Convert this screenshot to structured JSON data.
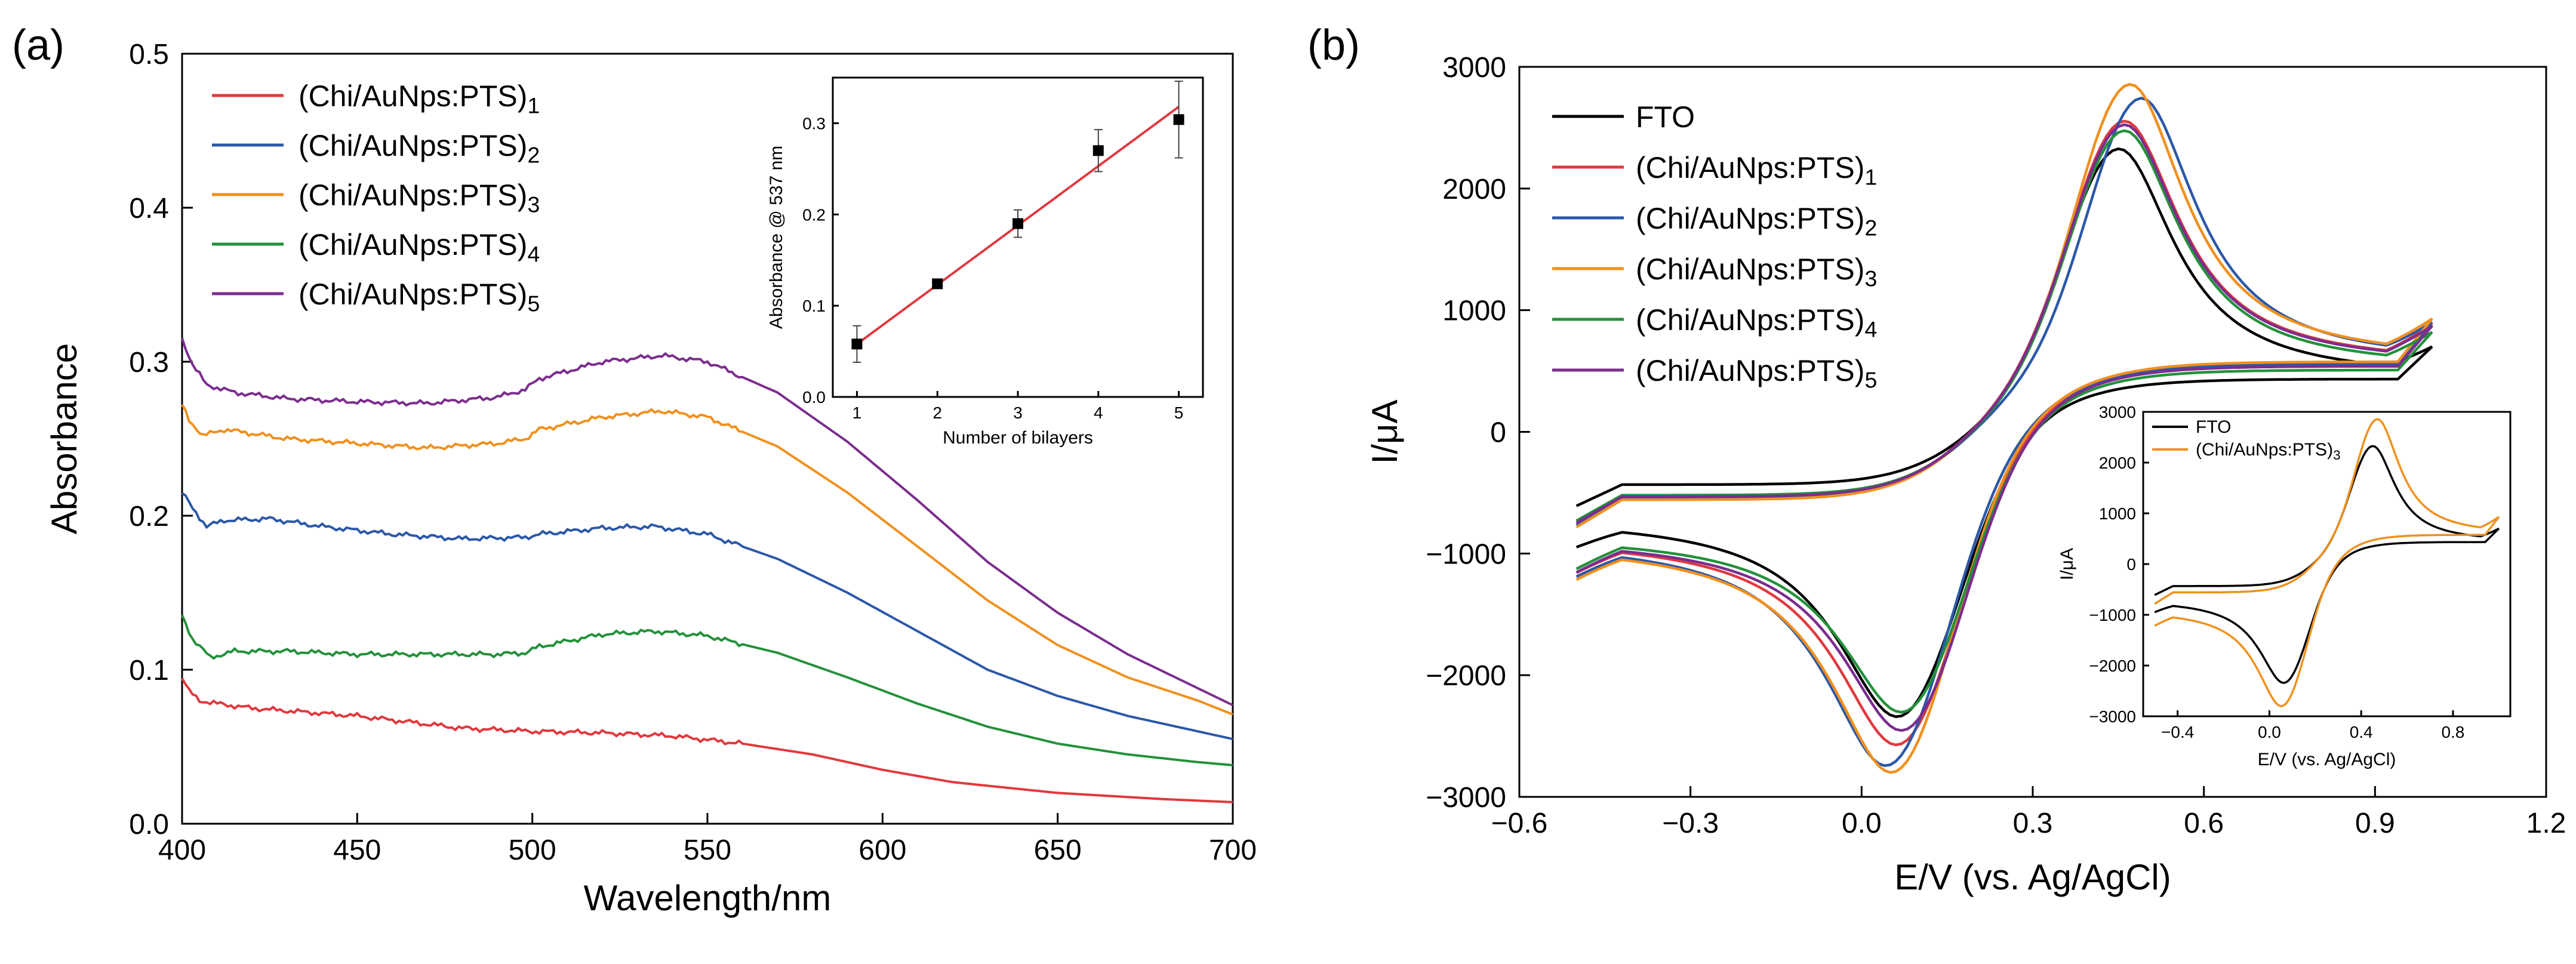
{
  "chart_data": [
    {
      "panel": "(a)",
      "type": "line",
      "xlabel": "Wavelength/nm",
      "ylabel": "Absorbance",
      "xlim": [
        400,
        700
      ],
      "ylim": [
        0.0,
        0.5
      ],
      "xticks": [
        "400",
        "450",
        "500",
        "550",
        "600",
        "650",
        "700"
      ],
      "yticks": [
        "0.0",
        "0.1",
        "0.2",
        "0.3",
        "0.4",
        "0.5"
      ],
      "legend_position": "top-left",
      "series": [
        {
          "name": "(Chi/AuNps:PTS)",
          "sub": "1",
          "color": "#e0393e",
          "points": [
            [
              400,
              0.095
            ],
            [
              402,
              0.086
            ],
            [
              405,
              0.08
            ],
            [
              410,
              0.078
            ],
            [
              420,
              0.075
            ],
            [
              450,
              0.07
            ],
            [
              480,
              0.062
            ],
            [
              500,
              0.06
            ],
            [
              520,
              0.059
            ],
            [
              540,
              0.057
            ],
            [
              560,
              0.052
            ],
            [
              580,
              0.045
            ],
            [
              600,
              0.035
            ],
            [
              620,
              0.027
            ],
            [
              650,
              0.02
            ],
            [
              680,
              0.016
            ],
            [
              700,
              0.014
            ]
          ]
        },
        {
          "name": "(Chi/AuNps:PTS)",
          "sub": "2",
          "color": "#2b58a8",
          "points": [
            [
              400,
              0.215
            ],
            [
              403,
              0.205
            ],
            [
              407,
              0.193
            ],
            [
              412,
              0.197
            ],
            [
              425,
              0.198
            ],
            [
              440,
              0.193
            ],
            [
              460,
              0.188
            ],
            [
              480,
              0.185
            ],
            [
              498,
              0.186
            ],
            [
              502,
              0.188
            ],
            [
              520,
              0.192
            ],
            [
              535,
              0.193
            ],
            [
              550,
              0.188
            ],
            [
              570,
              0.172
            ],
            [
              590,
              0.15
            ],
            [
              610,
              0.125
            ],
            [
              630,
              0.1
            ],
            [
              650,
              0.083
            ],
            [
              670,
              0.07
            ],
            [
              690,
              0.06
            ],
            [
              700,
              0.055
            ]
          ]
        },
        {
          "name": "(Chi/AuNps:PTS)",
          "sub": "3",
          "color": "#f0901e",
          "points": [
            [
              400,
              0.272
            ],
            [
              402,
              0.262
            ],
            [
              406,
              0.252
            ],
            [
              412,
              0.256
            ],
            [
              430,
              0.25
            ],
            [
              450,
              0.247
            ],
            [
              470,
              0.244
            ],
            [
              490,
              0.247
            ],
            [
              498,
              0.25
            ],
            [
              502,
              0.256
            ],
            [
              520,
              0.264
            ],
            [
              537,
              0.268
            ],
            [
              550,
              0.264
            ],
            [
              570,
              0.245
            ],
            [
              590,
              0.215
            ],
            [
              610,
              0.18
            ],
            [
              630,
              0.145
            ],
            [
              650,
              0.116
            ],
            [
              670,
              0.095
            ],
            [
              690,
              0.08
            ],
            [
              700,
              0.071
            ]
          ]
        },
        {
          "name": "(Chi/AuNps:PTS)",
          "sub": "4",
          "color": "#23913a",
          "points": [
            [
              400,
              0.135
            ],
            [
              403,
              0.12
            ],
            [
              408,
              0.108
            ],
            [
              415,
              0.112
            ],
            [
              430,
              0.112
            ],
            [
              450,
              0.11
            ],
            [
              470,
              0.11
            ],
            [
              490,
              0.11
            ],
            [
              498,
              0.111
            ],
            [
              502,
              0.115
            ],
            [
              520,
              0.123
            ],
            [
              535,
              0.125
            ],
            [
              550,
              0.122
            ],
            [
              570,
              0.111
            ],
            [
              590,
              0.095
            ],
            [
              610,
              0.078
            ],
            [
              630,
              0.063
            ],
            [
              650,
              0.052
            ],
            [
              670,
              0.045
            ],
            [
              690,
              0.04
            ],
            [
              700,
              0.038
            ]
          ]
        },
        {
          "name": "(Chi/AuNps:PTS)",
          "sub": "5",
          "color": "#7b2d8e",
          "points": [
            [
              400,
              0.315
            ],
            [
              403,
              0.298
            ],
            [
              407,
              0.285
            ],
            [
              415,
              0.28
            ],
            [
              430,
              0.276
            ],
            [
              450,
              0.274
            ],
            [
              470,
              0.273
            ],
            [
              490,
              0.277
            ],
            [
              498,
              0.282
            ],
            [
              502,
              0.289
            ],
            [
              520,
              0.3
            ],
            [
              537,
              0.304
            ],
            [
              550,
              0.3
            ],
            [
              570,
              0.28
            ],
            [
              590,
              0.248
            ],
            [
              610,
              0.21
            ],
            [
              630,
              0.17
            ],
            [
              650,
              0.137
            ],
            [
              670,
              0.11
            ],
            [
              690,
              0.088
            ],
            [
              700,
              0.077
            ]
          ]
        }
      ],
      "inset": {
        "type": "scatter",
        "xlabel": "Number of bilayers",
        "ylabel": "Absorbance @ 537 nm",
        "xlim": [
          0.7,
          5.3
        ],
        "ylim": [
          0.0,
          0.35
        ],
        "xticks": [
          "1",
          "2",
          "3",
          "4",
          "5"
        ],
        "yticks": [
          "0.0",
          "0.1",
          "0.2",
          "0.3"
        ],
        "x": [
          1,
          2,
          3,
          4,
          5
        ],
        "y": [
          0.058,
          0.124,
          0.19,
          0.27,
          0.304
        ],
        "err": [
          0.02,
          0.004,
          0.015,
          0.023,
          0.042
        ],
        "fit": [
          [
            1,
            0.058
          ],
          [
            5,
            0.318
          ]
        ],
        "marker_color": "#000000",
        "fit_color": "#e0393e"
      }
    },
    {
      "panel": "(b)",
      "type": "line",
      "xlabel": "E/V (vs. Ag/AgCl)",
      "ylabel": "I/μA",
      "xlim": [
        -0.6,
        1.2
      ],
      "ylim": [
        -3000,
        3000
      ],
      "xticks": [
        "-0.6",
        "-0.3",
        "0.0",
        "0.3",
        "0.6",
        "0.9",
        "1.2"
      ],
      "yticks": [
        "-3000",
        "-2000",
        "-1000",
        "0",
        "1000",
        "2000",
        "3000"
      ],
      "legend_position": "top-left",
      "series": [
        {
          "name": "FTO",
          "sub": "",
          "color": "#000000",
          "Epa": 0.45,
          "Ipa": 2350,
          "Epc": 0.07,
          "Ipc": -2200,
          "Iend": 700,
          "Istart": -700
        },
        {
          "name": "(Chi/AuNps:PTS)",
          "sub": "1",
          "color": "#e0393e",
          "Epa": 0.46,
          "Ipa": 2580,
          "Epc": 0.07,
          "Ipc": -2400,
          "Iend": 880,
          "Istart": -860
        },
        {
          "name": "(Chi/AuNps:PTS)",
          "sub": "2",
          "color": "#2b58a8",
          "Epa": 0.49,
          "Ipa": 2760,
          "Epc": 0.05,
          "Ipc": -2530,
          "Iend": 900,
          "Istart": -880
        },
        {
          "name": "(Chi/AuNps:PTS)",
          "sub": "3",
          "color": "#f0901e",
          "Epa": 0.47,
          "Ipa": 2880,
          "Epc": 0.06,
          "Ipc": -2600,
          "Iend": 930,
          "Istart": -900
        },
        {
          "name": "(Chi/AuNps:PTS)",
          "sub": "4",
          "color": "#23913a",
          "Epa": 0.46,
          "Ipa": 2500,
          "Epc": 0.08,
          "Ipc": -2150,
          "Iend": 820,
          "Istart": -840
        },
        {
          "name": "(Chi/AuNps:PTS)",
          "sub": "5",
          "color": "#7b2d8e",
          "Epa": 0.46,
          "Ipa": 2550,
          "Epc": 0.08,
          "Ipc": -2300,
          "Iend": 870,
          "Istart": -860
        }
      ],
      "inset": {
        "type": "line",
        "xlabel": "E/V (vs. Ag/AgCl)",
        "ylabel": "I/μA",
        "xlim": [
          -0.55,
          1.05
        ],
        "ylim": [
          -3000,
          3000
        ],
        "xticks": [
          "-0.4",
          "0.0",
          "0.4",
          "0.8"
        ],
        "yticks": [
          "-3000",
          "-2000",
          "-1000",
          "0",
          "1000",
          "2000",
          "3000"
        ],
        "series": [
          {
            "name": "FTO",
            "sub": "",
            "color": "#000000",
            "Epa": 0.45,
            "Ipa": 2350,
            "Epc": 0.07,
            "Ipc": -2200,
            "Iend": 700,
            "Istart": -700
          },
          {
            "name": "(Chi/AuNps:PTS)",
            "sub": "3",
            "color": "#f0901e",
            "Epa": 0.47,
            "Ipa": 2880,
            "Epc": 0.06,
            "Ipc": -2600,
            "Iend": 930,
            "Istart": -900
          }
        ]
      }
    }
  ]
}
